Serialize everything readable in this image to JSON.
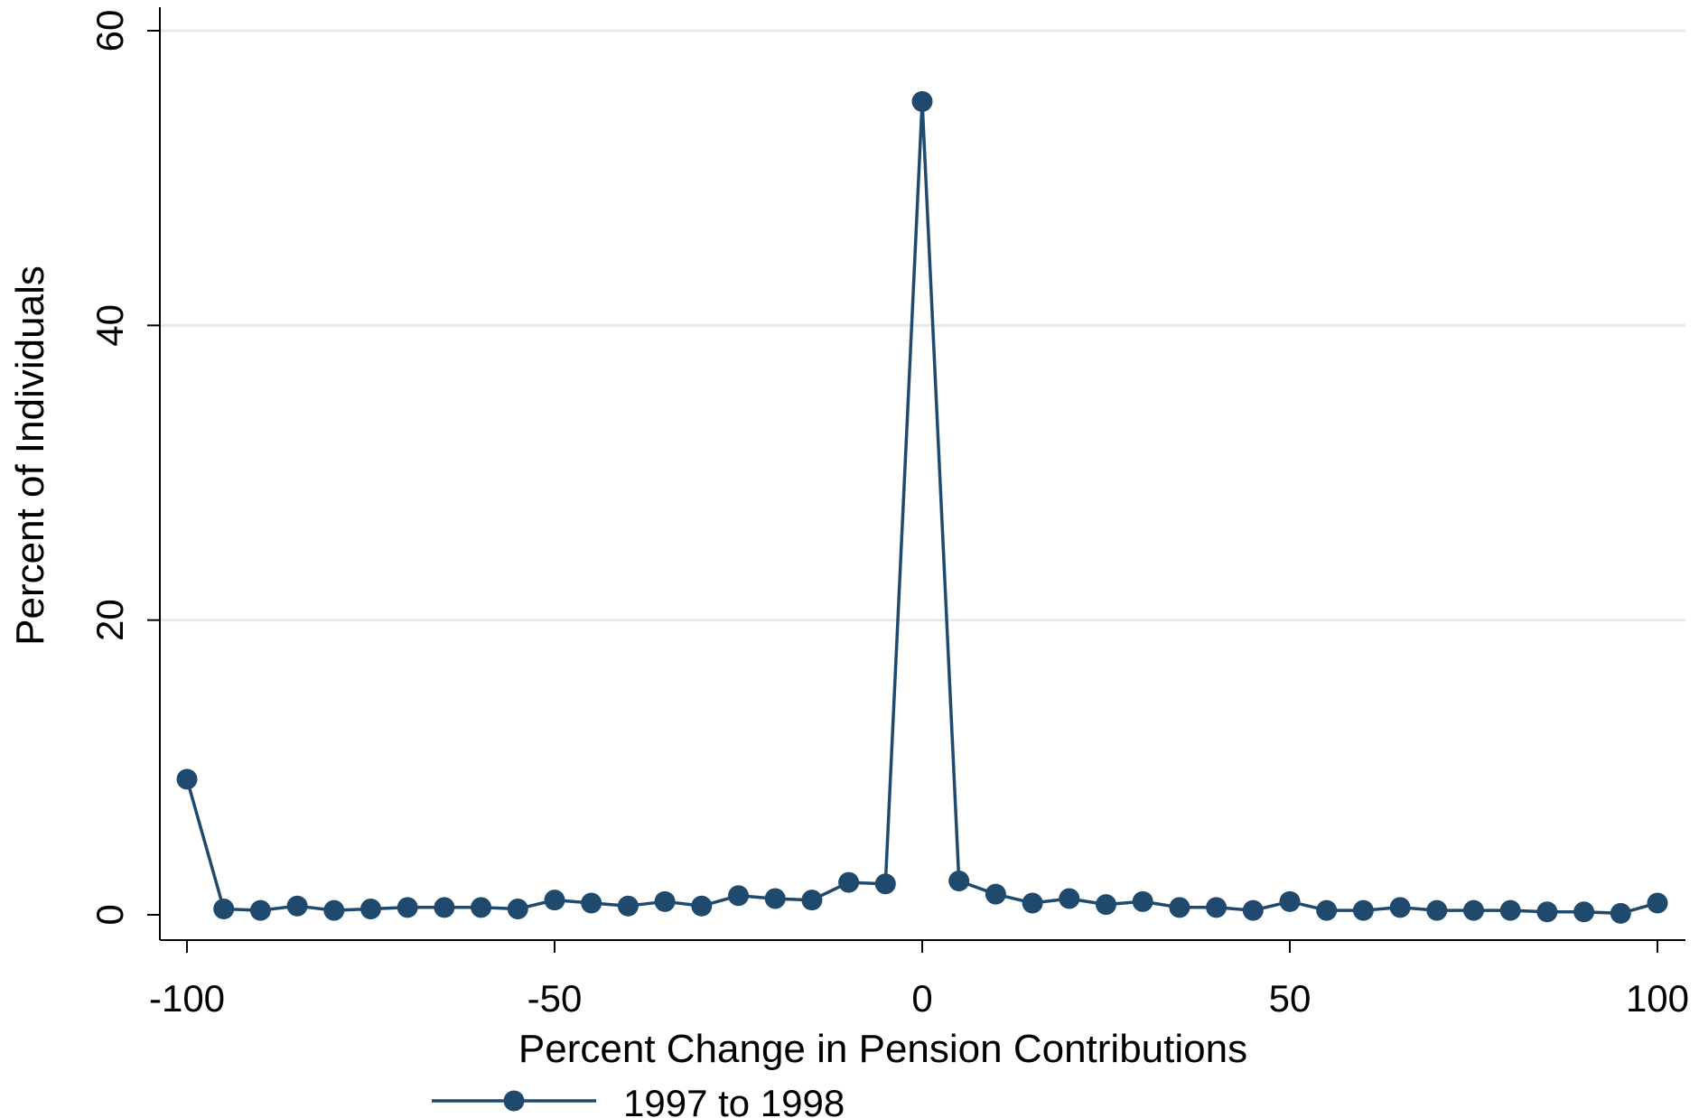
{
  "chart_data": {
    "type": "line",
    "title": "",
    "xlabel": "Percent Change in Pension Contributions",
    "ylabel": "Percent of Individuals",
    "xlim": [
      -100,
      100
    ],
    "ylim": [
      0,
      60
    ],
    "xticks": [
      -100,
      -50,
      0,
      50,
      100
    ],
    "yticks": [
      0,
      20,
      40,
      60
    ],
    "grid": "horizontal",
    "legend_position": "bottom",
    "series": [
      {
        "name": "1997 to 1998",
        "color": "#1f4a6e",
        "marker": "circle",
        "x": [
          -100,
          -95,
          -90,
          -85,
          -80,
          -75,
          -70,
          -65,
          -60,
          -55,
          -50,
          -45,
          -40,
          -35,
          -30,
          -25,
          -20,
          -15,
          -10,
          -5,
          0,
          5,
          10,
          15,
          20,
          25,
          30,
          35,
          40,
          45,
          50,
          55,
          60,
          65,
          70,
          75,
          80,
          85,
          90,
          95,
          100
        ],
        "y": [
          9.2,
          0.4,
          0.3,
          0.6,
          0.3,
          0.4,
          0.5,
          0.5,
          0.5,
          0.4,
          1.0,
          0.8,
          0.6,
          0.9,
          0.6,
          1.3,
          1.1,
          1.0,
          2.2,
          2.1,
          55.2,
          2.3,
          1.4,
          0.8,
          1.1,
          0.7,
          0.9,
          0.5,
          0.5,
          0.3,
          0.9,
          0.3,
          0.3,
          0.5,
          0.3,
          0.3,
          0.3,
          0.2,
          0.2,
          0.1,
          0.8
        ]
      }
    ]
  }
}
